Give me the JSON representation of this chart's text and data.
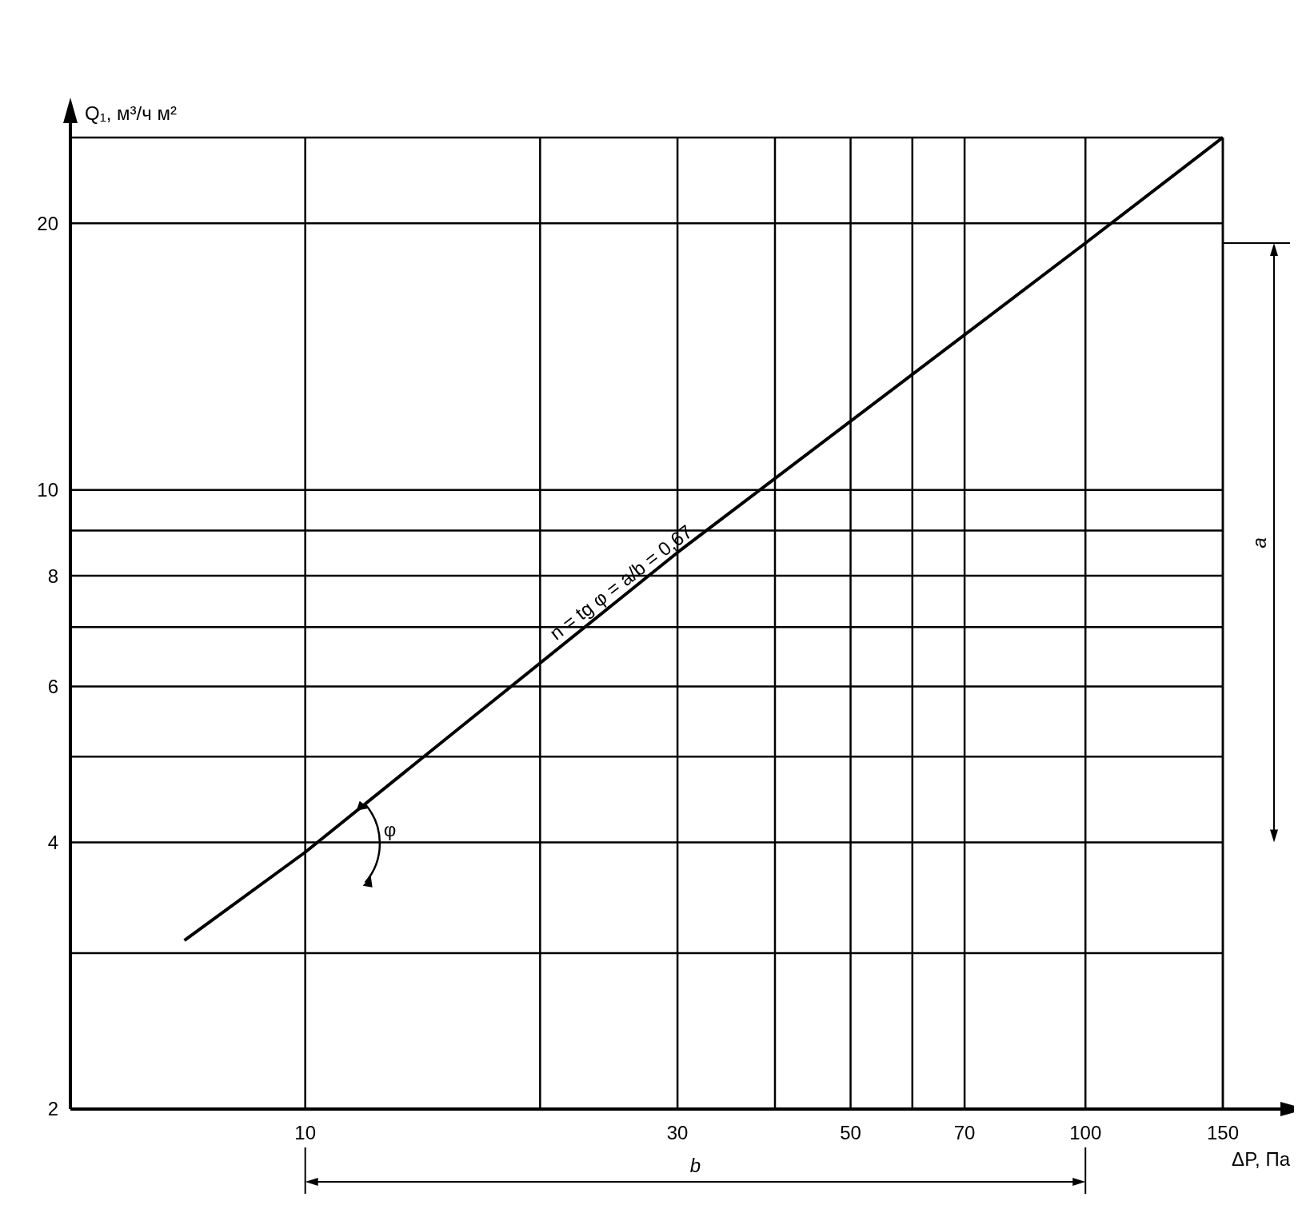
{
  "chart_data": {
    "type": "line",
    "xlabel": "ΔP, Па",
    "ylabel": "Q₁, м³/ч м²",
    "log": "xy",
    "grid": true,
    "marker": "none",
    "line_style": "solid",
    "xlim": [
      5,
      150
    ],
    "ylim": [
      2,
      25
    ],
    "xticks": [
      10,
      {
        "value": 20,
        "label": null
      },
      30,
      {
        "value": 40,
        "label": null
      },
      50,
      {
        "value": 60,
        "label": null
      },
      70,
      100,
      150
    ],
    "yticks": [
      2,
      {
        "value": 3,
        "label": null
      },
      4,
      {
        "value": 5,
        "label": null
      },
      6,
      {
        "value": 7,
        "label": null
      },
      8,
      {
        "value": 9,
        "label": null
      },
      10,
      20
    ],
    "series": [
      {
        "color": "#000000",
        "x": [
          7,
          10,
          30,
          100,
          150
        ],
        "values": [
          3.1,
          3.9,
          8.5,
          19,
          25
        ]
      }
    ],
    "annotations": [
      "n = tg φ = a/b = 0,67",
      "φ",
      "a",
      "b"
    ]
  }
}
